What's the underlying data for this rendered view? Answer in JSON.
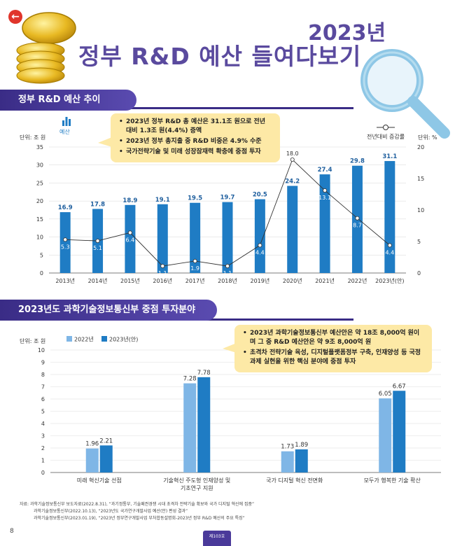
{
  "header": {
    "year": "2023년",
    "title": "정부 R&D 예산 들여다보기"
  },
  "section1": {
    "title": "정부 R&D 예산 추이",
    "unit_left": "단위: 조 원",
    "unit_right": "단위: %",
    "legend_bar": "예산",
    "legend_line": "전년대비 증감률",
    "bullets": [
      "2023년 정부 R&D 총 예산은 31.1조 원으로 전년 대비 1.3조 원(4.4%) 증액",
      "2023년 정부 총지출 중 R&D 비중은 4.9% 수준",
      "국가전략기술 및 미래 성장잠재력 확충에 중점 투자"
    ]
  },
  "section2": {
    "title": "2023년도 과학기술정보통신부 중점 투자분야",
    "unit_left": "단위: 조 원",
    "bullets": [
      "2023년 과학기술정보통신부 예산안은 약 18조 8,000억 원이며 그 중 R&D 예산안은 약 9조 8,000억 원",
      "초격차 전략기술 육성, 디지털플랫폼정부 구축, 인재양성 등 국정과제 실현을 위한 핵심 분야에 중점 투자"
    ]
  },
  "chart_data": [
    {
      "type": "bar",
      "categories": [
        "2013년",
        "2014년",
        "2015년",
        "2016년",
        "2017년",
        "2018년",
        "2019년",
        "2020년",
        "2021년",
        "2022년",
        "2023년(안)"
      ],
      "series": [
        {
          "name": "예산",
          "type": "bar",
          "axis": "left",
          "values": [
            16.9,
            17.8,
            18.9,
            19.1,
            19.5,
            19.7,
            20.5,
            24.2,
            27.4,
            29.8,
            31.1
          ],
          "color": "#1f7cc4"
        },
        {
          "name": "전년대비 증감률",
          "type": "line",
          "axis": "right",
          "values": [
            5.3,
            5.1,
            6.4,
            1.1,
            1.9,
            1.1,
            4.4,
            18.0,
            13.1,
            8.7,
            4.4
          ],
          "color": "#333333"
        }
      ],
      "y_ticks": [
        0,
        5,
        10,
        15,
        20,
        25,
        30,
        35
      ],
      "ylim": [
        0,
        35
      ],
      "y2_ticks": [
        0,
        5,
        10,
        15,
        20
      ],
      "y2lim": [
        0,
        20
      ],
      "grid": true
    },
    {
      "type": "bar",
      "categories": [
        "미래 혁신기술 선점",
        "기술혁신 주도형 인재양성 및 기초연구 지원",
        "국가 디지털 혁신 전면화",
        "모두가 행복한 기술 확산"
      ],
      "series": [
        {
          "name": "2022년",
          "values": [
            1.96,
            7.28,
            1.73,
            6.05
          ],
          "color": "#7fb6e6"
        },
        {
          "name": "2023년(안)",
          "values": [
            2.21,
            7.78,
            1.89,
            6.67
          ],
          "color": "#1f7cc4"
        }
      ],
      "y_ticks": [
        0,
        1,
        2,
        3,
        4,
        5,
        6,
        7,
        8,
        9,
        10
      ],
      "ylim": [
        0,
        10
      ],
      "grid": true,
      "legend": "top-left"
    }
  ],
  "footer": {
    "notes": [
      "자료: 과학기술정보통신부 보도자료(2022.8.31), “과기정통부, 기술패권경쟁 시대 초격차 전략기술 확보와 국가 디지털 혁신에 집중”",
      "과학기술정보통신부(2022.10.13), “2023년도 국가연구개발사업 예산(안) 편성 결과”",
      "과학기술정보통신부(2023.01.19), “2023년 정부연구개발사업 부처합동설명회-2023년 정부 R&D 예산의 주요 특징”"
    ],
    "page_number": "8",
    "issue": "제103호"
  }
}
